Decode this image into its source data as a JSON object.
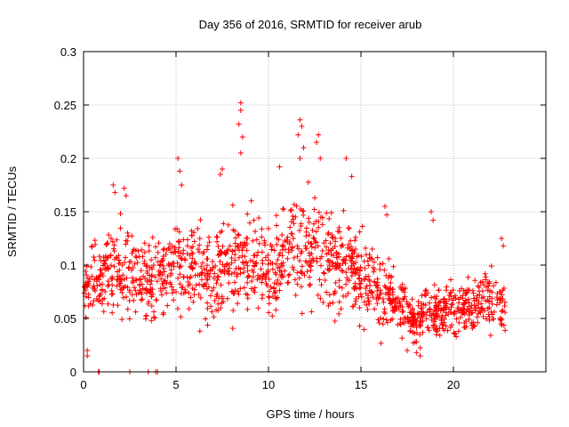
{
  "chart_data": {
    "type": "scatter",
    "title": "Day 356 of 2016, SRMTID for receiver arub",
    "xlabel": "GPS time / hours",
    "ylabel": "SRMTID / TECUs",
    "xlim": [
      0,
      25
    ],
    "ylim": [
      0,
      0.3
    ],
    "xticks": [
      0,
      5,
      10,
      15,
      20
    ],
    "xtick_labels": [
      "0",
      "5",
      "10",
      "15",
      "20"
    ],
    "yticks": [
      0,
      0.05,
      0.1,
      0.15,
      0.2,
      0.25,
      0.3
    ],
    "ytick_labels": [
      "0",
      "0.05",
      "0.1",
      "0.15",
      "0.2",
      "0.25",
      "0.3"
    ],
    "grid": true,
    "marker": "+",
    "color": "#ff0000",
    "series": [
      {
        "name": "SRMTID",
        "envelope": [
          {
            "x": 0.0,
            "mean": 0.075,
            "spread": 0.03
          },
          {
            "x": 1.0,
            "mean": 0.09,
            "spread": 0.035
          },
          {
            "x": 2.0,
            "mean": 0.1,
            "spread": 0.04
          },
          {
            "x": 3.0,
            "mean": 0.085,
            "spread": 0.04
          },
          {
            "x": 4.0,
            "mean": 0.085,
            "spread": 0.04
          },
          {
            "x": 5.0,
            "mean": 0.095,
            "spread": 0.045
          },
          {
            "x": 6.0,
            "mean": 0.095,
            "spread": 0.045
          },
          {
            "x": 7.0,
            "mean": 0.09,
            "spread": 0.045
          },
          {
            "x": 8.0,
            "mean": 0.11,
            "spread": 0.05
          },
          {
            "x": 9.0,
            "mean": 0.1,
            "spread": 0.05
          },
          {
            "x": 10.0,
            "mean": 0.095,
            "spread": 0.045
          },
          {
            "x": 11.0,
            "mean": 0.115,
            "spread": 0.05
          },
          {
            "x": 12.0,
            "mean": 0.12,
            "spread": 0.055
          },
          {
            "x": 13.0,
            "mean": 0.11,
            "spread": 0.05
          },
          {
            "x": 14.0,
            "mean": 0.1,
            "spread": 0.045
          },
          {
            "x": 15.0,
            "mean": 0.09,
            "spread": 0.04
          },
          {
            "x": 16.0,
            "mean": 0.075,
            "spread": 0.035
          },
          {
            "x": 17.0,
            "mean": 0.065,
            "spread": 0.03
          },
          {
            "x": 18.0,
            "mean": 0.05,
            "spread": 0.02
          },
          {
            "x": 19.0,
            "mean": 0.055,
            "spread": 0.025
          },
          {
            "x": 20.0,
            "mean": 0.06,
            "spread": 0.025
          },
          {
            "x": 21.0,
            "mean": 0.06,
            "spread": 0.025
          },
          {
            "x": 22.0,
            "mean": 0.065,
            "spread": 0.03
          },
          {
            "x": 22.8,
            "mean": 0.06,
            "spread": 0.03
          }
        ],
        "outliers": [
          {
            "x": 8.5,
            "y": 0.252
          },
          {
            "x": 8.5,
            "y": 0.245
          },
          {
            "x": 8.4,
            "y": 0.232
          },
          {
            "x": 8.6,
            "y": 0.22
          },
          {
            "x": 8.5,
            "y": 0.205
          },
          {
            "x": 11.7,
            "y": 0.236
          },
          {
            "x": 11.8,
            "y": 0.23
          },
          {
            "x": 11.6,
            "y": 0.222
          },
          {
            "x": 11.9,
            "y": 0.21
          },
          {
            "x": 11.7,
            "y": 0.2
          },
          {
            "x": 12.7,
            "y": 0.222
          },
          {
            "x": 12.6,
            "y": 0.215
          },
          {
            "x": 12.8,
            "y": 0.2
          },
          {
            "x": 5.1,
            "y": 0.2
          },
          {
            "x": 5.2,
            "y": 0.188
          },
          {
            "x": 5.3,
            "y": 0.175
          },
          {
            "x": 10.6,
            "y": 0.192
          },
          {
            "x": 14.2,
            "y": 0.2
          },
          {
            "x": 14.5,
            "y": 0.183
          },
          {
            "x": 7.5,
            "y": 0.19
          },
          {
            "x": 7.4,
            "y": 0.185
          },
          {
            "x": 1.6,
            "y": 0.175
          },
          {
            "x": 1.7,
            "y": 0.168
          },
          {
            "x": 2.2,
            "y": 0.172
          },
          {
            "x": 2.3,
            "y": 0.165
          },
          {
            "x": 16.3,
            "y": 0.155
          },
          {
            "x": 16.4,
            "y": 0.147
          },
          {
            "x": 18.8,
            "y": 0.15
          },
          {
            "x": 18.9,
            "y": 0.142
          },
          {
            "x": 22.6,
            "y": 0.125
          },
          {
            "x": 22.7,
            "y": 0.118
          },
          {
            "x": 0.2,
            "y": 0.02
          },
          {
            "x": 0.2,
            "y": 0.015
          },
          {
            "x": 17.5,
            "y": 0.02
          },
          {
            "x": 18.0,
            "y": 0.018
          },
          {
            "x": 18.2,
            "y": 0.015
          }
        ],
        "zero_points": [
          {
            "x": 0.8,
            "y": 0
          },
          {
            "x": 0.85,
            "y": 0
          },
          {
            "x": 2.5,
            "y": 0
          },
          {
            "x": 3.5,
            "y": 0
          },
          {
            "x": 3.9,
            "y": 0
          },
          {
            "x": 4.0,
            "y": 0
          }
        ]
      }
    ]
  }
}
